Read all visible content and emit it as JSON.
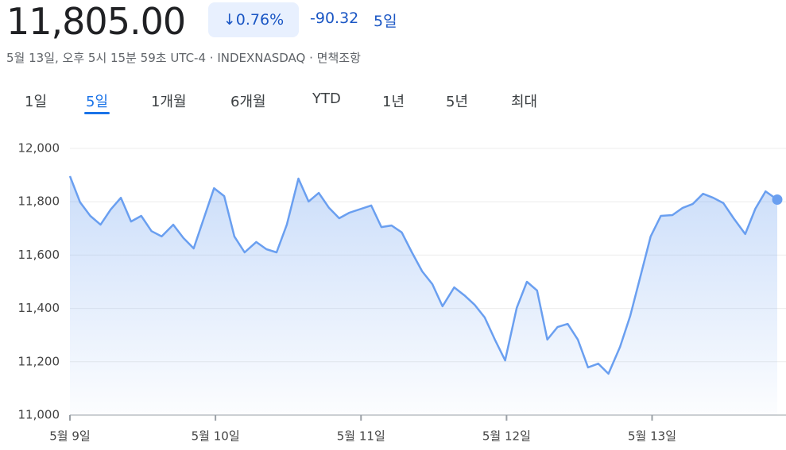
{
  "header": {
    "price": "11,805.00",
    "change_percent": "↓0.76%",
    "change": "-90.32",
    "period": "5일",
    "subtitle": "5월 13일, 오후 5시 15분 59초 UTC-4 · INDEXNASDAQ · 면책조항"
  },
  "tabs": [
    "1일",
    "5일",
    "1개월",
    "6개월",
    "YTD",
    "1년",
    "5년",
    "최대"
  ],
  "active_tab": 1,
  "chart_data": {
    "type": "area",
    "x": [
      0,
      0.07,
      0.14,
      0.21,
      0.28,
      0.35,
      0.42,
      0.49,
      0.56,
      0.63,
      0.71,
      0.78,
      0.85,
      0.92,
      0.99,
      1.06,
      1.13,
      1.2,
      1.28,
      1.35,
      1.42,
      1.49,
      1.57,
      1.64,
      1.71,
      1.78,
      1.85,
      1.92,
      2.07,
      2.14,
      2.21,
      2.28,
      2.35,
      2.42,
      2.49,
      2.56,
      2.64,
      2.71,
      2.78,
      2.85,
      2.92,
      2.99,
      3.07,
      3.14,
      3.21,
      3.28,
      3.35,
      3.42,
      3.49,
      3.56,
      3.63,
      3.7,
      3.78,
      3.85,
      3.92,
      3.99,
      4.06,
      4.14,
      4.21,
      4.28,
      4.35,
      4.42,
      4.49,
      4.56,
      4.64,
      4.71,
      4.78,
      4.86
    ],
    "values": [
      11896,
      11798,
      11747,
      11714,
      11771,
      11815,
      11726,
      11747,
      11690,
      11670,
      11714,
      11664,
      11625,
      11738,
      11851,
      11821,
      11670,
      11610,
      11649,
      11622,
      11610,
      11714,
      11887,
      11801,
      11833,
      11777,
      11738,
      11759,
      11786,
      11705,
      11711,
      11685,
      11610,
      11539,
      11491,
      11408,
      11479,
      11449,
      11414,
      11366,
      11283,
      11205,
      11402,
      11500,
      11467,
      11283,
      11330,
      11342,
      11283,
      11179,
      11193,
      11155,
      11256,
      11372,
      11521,
      11670,
      11747,
      11750,
      11777,
      11792,
      11830,
      11815,
      11795,
      11738,
      11679,
      11774,
      11839,
      11808
    ],
    "color": "#6a9ff0",
    "xlim": [
      0,
      4.86
    ],
    "xticks": [
      {
        "value": 0,
        "label": "5월 9일"
      },
      {
        "value": 1,
        "label": "5월 10일"
      },
      {
        "value": 2,
        "label": "5월 11일"
      },
      {
        "value": 3,
        "label": "5월 12일"
      },
      {
        "value": 4,
        "label": "5월 13일"
      }
    ],
    "ylim": [
      11000,
      12000
    ],
    "yticks": [
      {
        "value": 11000,
        "label": "11,000"
      },
      {
        "value": 11200,
        "label": "11,200"
      },
      {
        "value": 11400,
        "label": "11,400"
      },
      {
        "value": 11600,
        "label": "11,600"
      },
      {
        "value": 11800,
        "label": "11,800"
      },
      {
        "value": 12000,
        "label": "12,000"
      }
    ],
    "grid": true
  }
}
